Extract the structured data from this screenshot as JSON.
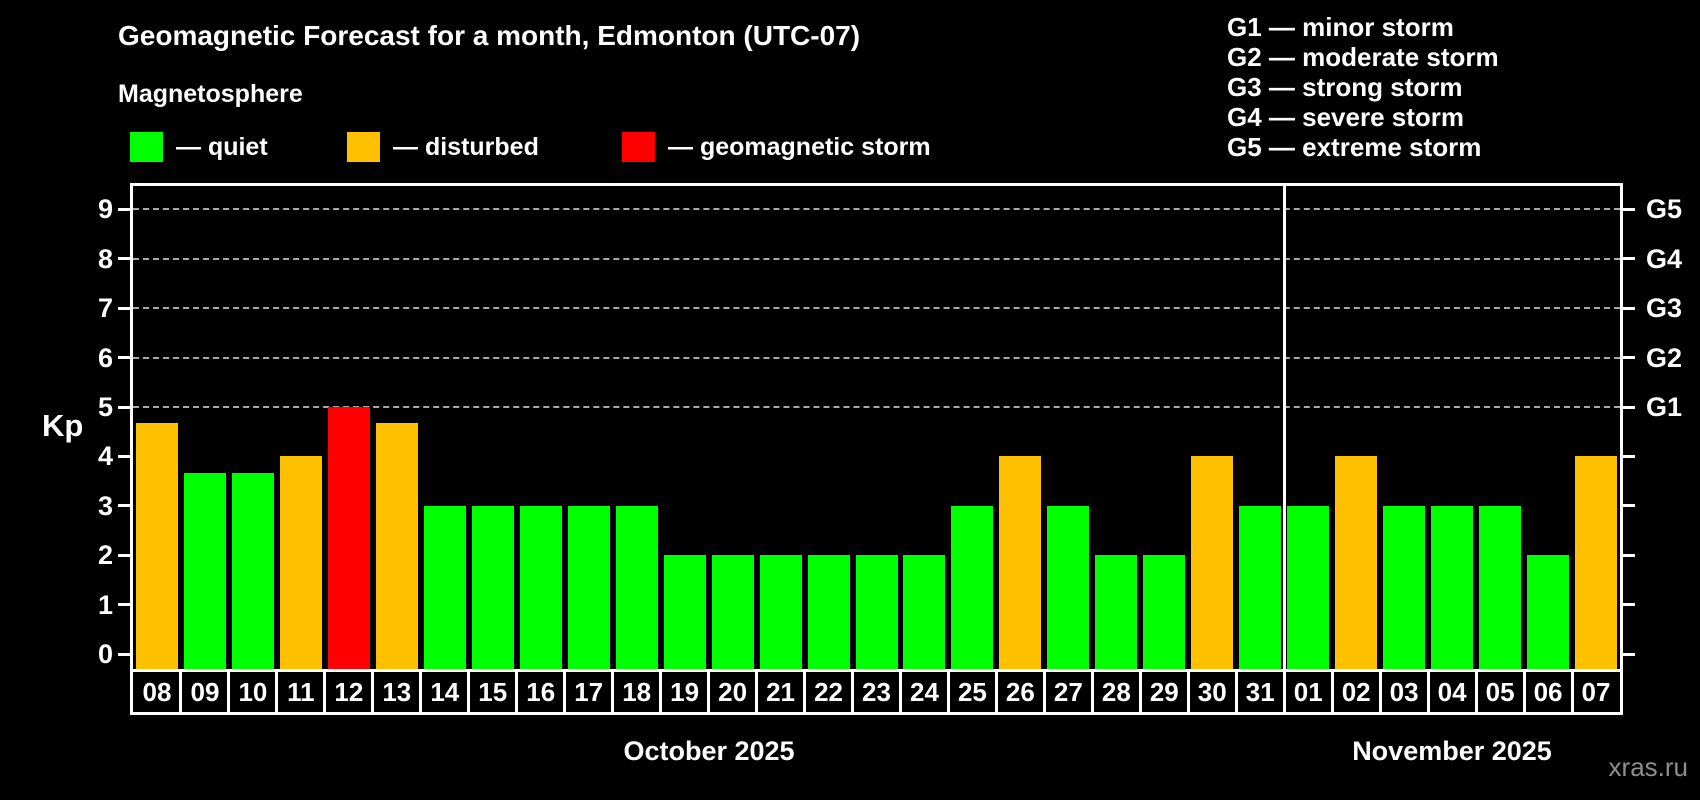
{
  "header": {
    "title": "Geomagnetic Forecast for a month, Edmonton (UTC-07)",
    "subtitle": "Magnetosphere"
  },
  "legend": {
    "items": [
      {
        "status": "quiet",
        "label": "— quiet",
        "color": "#00ff00"
      },
      {
        "status": "disturbed",
        "label": "— disturbed",
        "color": "#ffc000"
      },
      {
        "status": "storm",
        "label": "— geomagnetic storm",
        "color": "#ff0000"
      }
    ]
  },
  "g_scale_legend": {
    "lines": [
      "G1 — minor storm",
      "G2 — moderate storm",
      "G3 — strong storm",
      "G4 — severe storm",
      "G5 — extreme storm"
    ]
  },
  "chart_data": {
    "type": "bar",
    "title": "Geomagnetic Forecast for a month, Edmonton (UTC-07)",
    "ylabel": "Kp",
    "ylim": [
      0,
      9.4
    ],
    "yticks": [
      0,
      1,
      2,
      3,
      4,
      5,
      6,
      7,
      8,
      9
    ],
    "gridlines_at": [
      5,
      6,
      7,
      8,
      9
    ],
    "grid_style": "dashed",
    "right_axis_labels": {
      "5": "G1",
      "6": "G2",
      "7": "G3",
      "8": "G4",
      "9": "G5"
    },
    "legend_position": "top-left",
    "categories": [
      "08",
      "09",
      "10",
      "11",
      "12",
      "13",
      "14",
      "15",
      "16",
      "17",
      "18",
      "19",
      "20",
      "21",
      "22",
      "23",
      "24",
      "25",
      "26",
      "27",
      "28",
      "29",
      "30",
      "31",
      "01",
      "02",
      "03",
      "04",
      "05",
      "06",
      "07"
    ],
    "values": [
      4.67,
      3.67,
      3.67,
      4,
      5,
      4.67,
      3,
      3,
      3,
      3,
      3,
      2,
      2,
      2,
      2,
      2,
      2,
      3,
      4,
      3,
      2,
      2,
      4,
      3,
      3,
      4,
      3,
      3,
      3,
      2,
      4
    ],
    "statuses": [
      "disturbed",
      "quiet",
      "quiet",
      "disturbed",
      "storm",
      "disturbed",
      "quiet",
      "quiet",
      "quiet",
      "quiet",
      "quiet",
      "quiet",
      "quiet",
      "quiet",
      "quiet",
      "quiet",
      "quiet",
      "quiet",
      "disturbed",
      "quiet",
      "quiet",
      "quiet",
      "disturbed",
      "quiet",
      "quiet",
      "disturbed",
      "quiet",
      "quiet",
      "quiet",
      "quiet",
      "disturbed"
    ],
    "colors": {
      "quiet": "#00ff00",
      "disturbed": "#ffc000",
      "storm": "#ff0000"
    },
    "month_sections": [
      {
        "label": "October 2025",
        "days": 24
      },
      {
        "label": "November 2025",
        "days": 7
      }
    ]
  },
  "watermark": "xras.ru"
}
